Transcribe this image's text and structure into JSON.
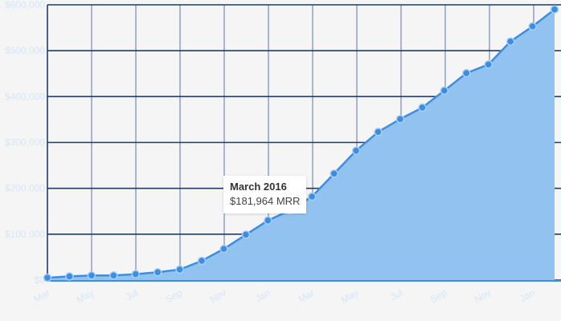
{
  "chart_data": {
    "type": "area",
    "title": "",
    "xlabel": "",
    "ylabel": "",
    "ylim": [
      0,
      600000
    ],
    "yticks": [
      "$0",
      "$100,000",
      "$200,000",
      "$300,000",
      "$400,000",
      "$500,000",
      "$600,000"
    ],
    "xticks": [
      "Mar",
      "May",
      "Jul",
      "Sep",
      "Nov",
      "Jan",
      "Mar",
      "May",
      "Jul",
      "Sep",
      "Nov",
      "Jan"
    ],
    "grid": true,
    "legend": "none",
    "colors": {
      "area": "#92c2f0",
      "line": "#3d8ee0",
      "point_fill": "#3d8ee0",
      "point_stroke": "#a9d0f5",
      "grid": "#1f3d66",
      "axis_label": "#d4e6f8"
    },
    "series": [
      {
        "values": [
          5000,
          8000,
          10000,
          10000,
          13000,
          17000,
          23000,
          42000,
          68000,
          99000,
          130000,
          152000,
          182000,
          232000,
          282000,
          323000,
          351000,
          376000,
          413000,
          451000,
          470000,
          520000,
          553000,
          590000
        ]
      }
    ],
    "tooltip": {
      "title": "March 2016",
      "value": "$181,964 MRR",
      "point_index": 12
    }
  }
}
